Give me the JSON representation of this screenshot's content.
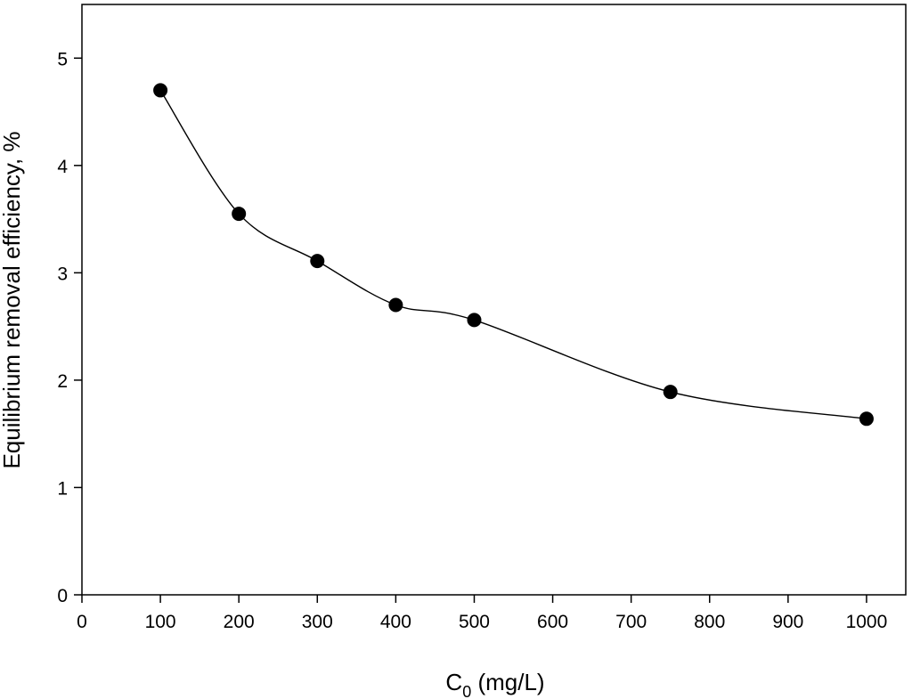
{
  "chart_data": {
    "type": "scatter",
    "title": "",
    "xlabel_main": "C",
    "xlabel_sub": "0",
    "xlabel_rest": " (mg/L)",
    "ylabel": "Equilibrium removal efficiency, %",
    "xlim": [
      0,
      1050
    ],
    "ylim": [
      0,
      5.5
    ],
    "xticks": [
      0,
      100,
      200,
      300,
      400,
      500,
      600,
      700,
      800,
      900,
      1000
    ],
    "yticks": [
      0,
      1,
      2,
      3,
      4,
      5
    ],
    "grid": false,
    "legend": "none",
    "series": [
      {
        "x": [
          100,
          200,
          300,
          400,
          500,
          750,
          1000
        ],
        "y": [
          4.7,
          3.55,
          3.11,
          2.7,
          2.56,
          1.89,
          1.64
        ],
        "marker": "filled-circle",
        "line": "smooth-curve",
        "color": "#000000"
      }
    ]
  }
}
